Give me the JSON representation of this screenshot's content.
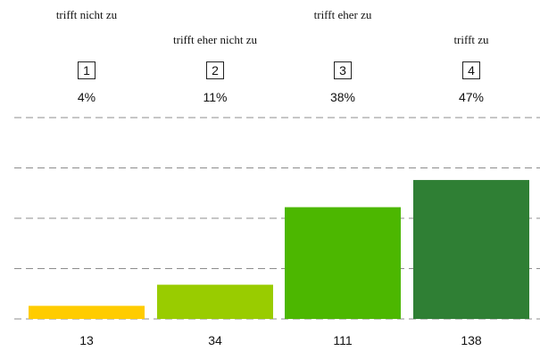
{
  "chart_data": {
    "type": "bar",
    "categories": [
      "1",
      "2",
      "3",
      "4"
    ],
    "category_labels": [
      "trifft nicht zu",
      "trifft eher nicht zu",
      "trifft eher zu",
      "trifft zu"
    ],
    "percentages": [
      "4%",
      "11%",
      "38%",
      "47%"
    ],
    "values": [
      13,
      34,
      111,
      138
    ],
    "ylim": [
      0,
      200
    ],
    "grid": true,
    "colors": [
      "#ffcc00",
      "#99cc00",
      "#4cb700",
      "#2f7f34"
    ]
  }
}
